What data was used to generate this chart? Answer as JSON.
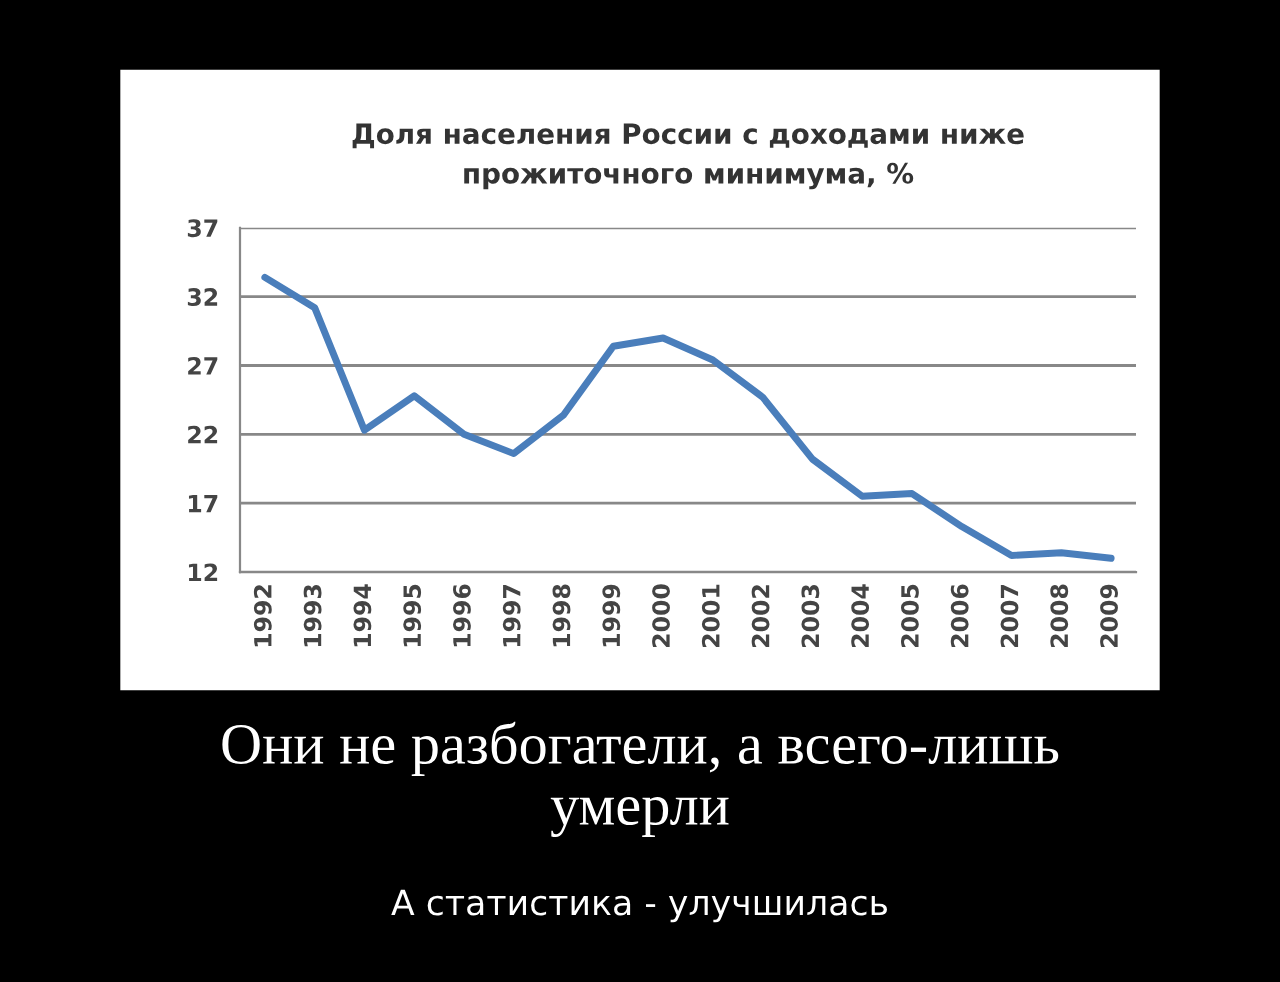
{
  "chart_data": {
    "type": "line",
    "title": "Доля населения России с доходами ниже\nпрожиточного минимума, %",
    "categories": [
      "1992",
      "1993",
      "1994",
      "1995",
      "1996",
      "1997",
      "1998",
      "1999",
      "2000",
      "2001",
      "2002",
      "2003",
      "2004",
      "2005",
      "2006",
      "2007",
      "2008",
      "2009"
    ],
    "series": [
      {
        "color": "#4a7ebb",
        "values": [
          33.4,
          31.2,
          22.3,
          24.8,
          22.0,
          20.6,
          23.4,
          28.4,
          29.0,
          27.4,
          24.7,
          20.2,
          17.5,
          17.7,
          15.3,
          13.2,
          13.4,
          13.0
        ]
      }
    ],
    "ylim": [
      12,
      37
    ],
    "yticks": [
      12,
      17,
      22,
      27,
      32,
      37
    ],
    "grid": "y",
    "marker": "none",
    "line_style": "solid",
    "annotations": [
      "Они не разбогатели, а всего-лишь\nумерли",
      "А статистика - улучшилась"
    ]
  }
}
